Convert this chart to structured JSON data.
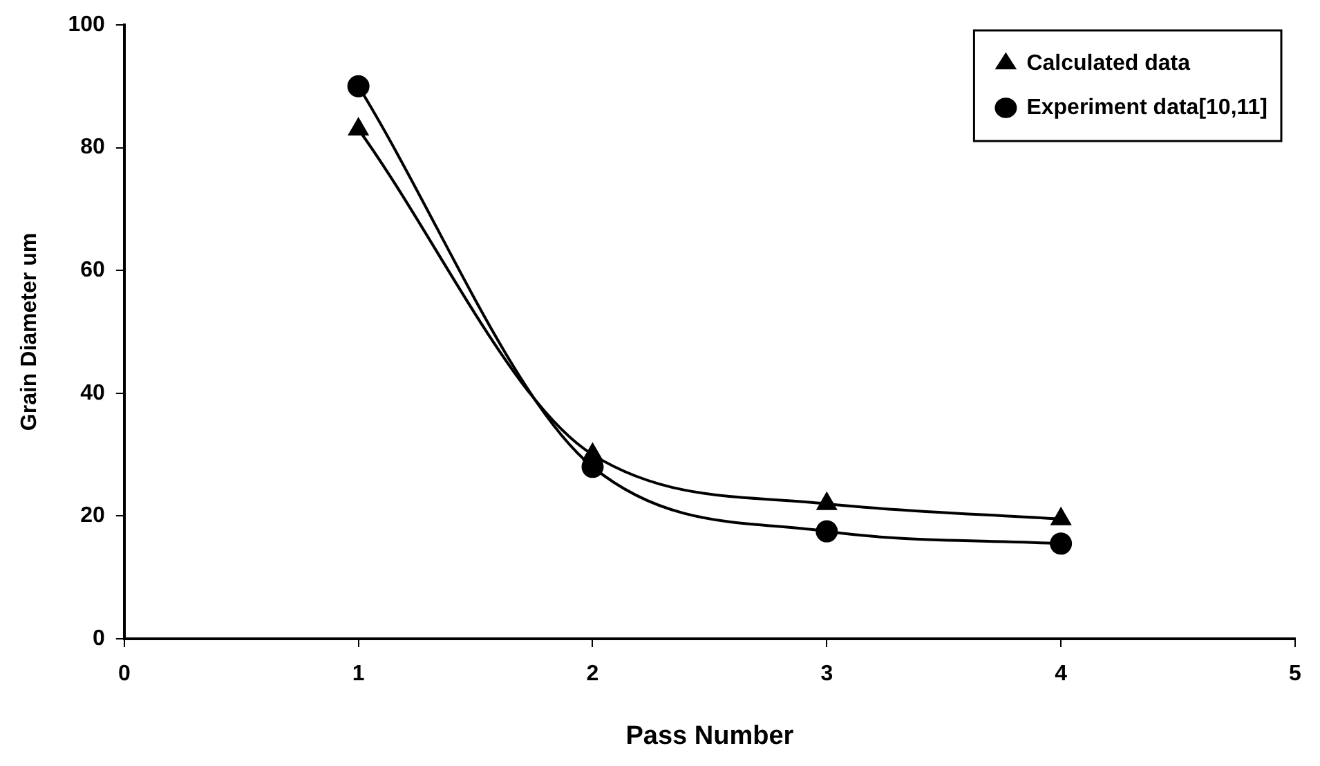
{
  "chart_data": {
    "type": "line",
    "xlabel": "Pass Number",
    "ylabel": "Grain Diameter um",
    "x": [
      1,
      2,
      3,
      4
    ],
    "series": [
      {
        "name": "Calculated data",
        "color": "#000000",
        "marker": "triangle",
        "values": [
          83,
          30,
          22,
          19.5
        ]
      },
      {
        "name": "Experiment data[10,11]",
        "color": "#000000",
        "marker": "circle",
        "values": [
          90,
          28,
          17.5,
          15.5
        ]
      }
    ],
    "xlim": [
      0,
      5
    ],
    "xticks": [
      0,
      1,
      2,
      3,
      4,
      5
    ],
    "ylim": [
      0,
      100
    ],
    "yticks": [
      0,
      20,
      40,
      60,
      80,
      100
    ],
    "legend": "top right"
  }
}
